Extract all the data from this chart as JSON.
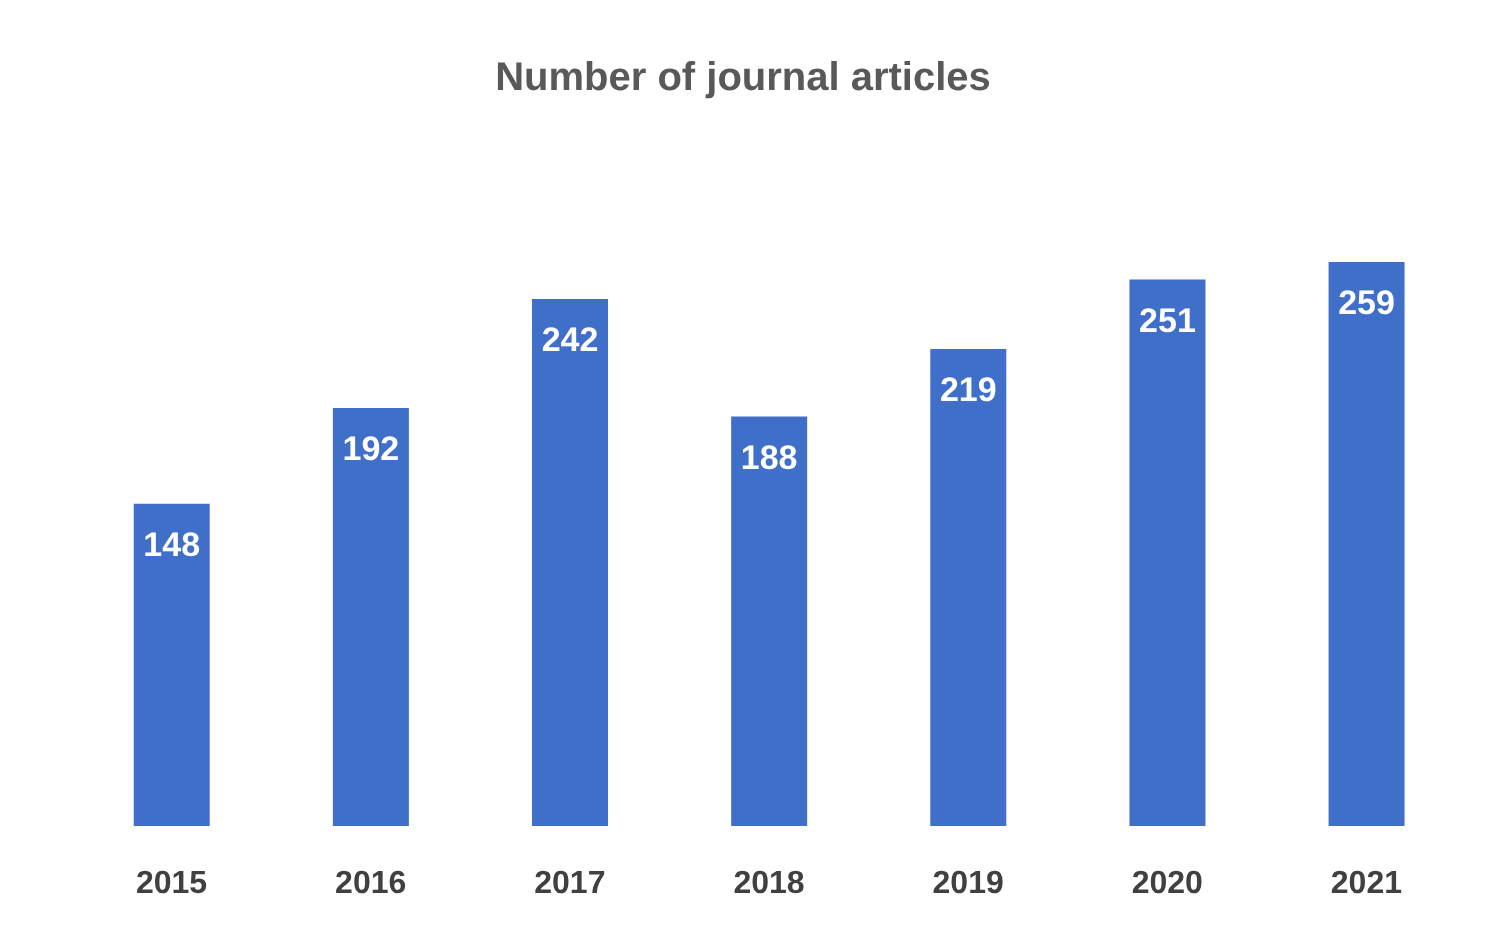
{
  "chart_data": {
    "type": "bar",
    "title": "Number of journal articles",
    "categories": [
      "2015",
      "2016",
      "2017",
      "2018",
      "2019",
      "2020",
      "2021"
    ],
    "values": [
      148,
      192,
      242,
      188,
      219,
      251,
      259
    ],
    "color": "#3f6fc9",
    "data_labels": true,
    "grid": false,
    "legend": false
  }
}
